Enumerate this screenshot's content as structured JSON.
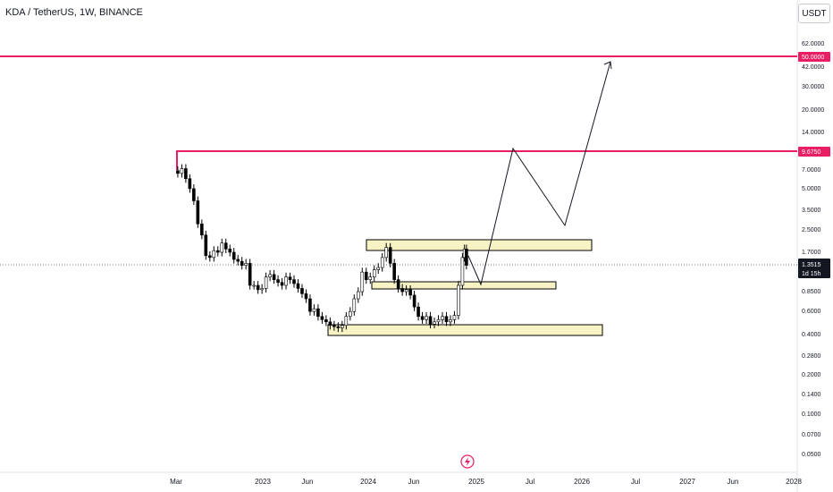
{
  "header": {
    "symbol_title": "KDA / TetherUS, 1W, BINANCE",
    "currency_button": "USDT"
  },
  "price_axis": {
    "ticks": [
      "62.0000",
      "42.0000",
      "30.0000",
      "20.0000",
      "14.0000",
      "7.0000",
      "5.0000",
      "3.5000",
      "2.5000",
      "1.7000",
      "0.8500",
      "0.6000",
      "0.4000",
      "0.2800",
      "0.2000",
      "0.1400",
      "0.1000",
      "0.0700",
      "0.0500"
    ],
    "current_price": "1.3515",
    "countdown": "1d 15h",
    "levels": [
      {
        "label": "50.0000",
        "value": 50.0
      },
      {
        "label": "9.6750",
        "value": 9.675
      }
    ]
  },
  "time_axis": {
    "ticks": [
      "Mar",
      "2023",
      "Jun",
      "2024",
      "Jun",
      "2025",
      "Jul",
      "2026",
      "Jul",
      "2027",
      "Jun",
      "2028"
    ]
  },
  "colors": {
    "level_line": "#e91e63",
    "zone_fill": "#f7f3c4",
    "zone_border": "#000000",
    "up_candle": "#ffffff",
    "down_candle": "#000000",
    "current_price_badge": "#131722"
  },
  "chart_data": {
    "type": "candlestick",
    "scale": "log",
    "x_axis": "weekly, Mar 2022 to 2028",
    "title": "KDA / TetherUS, 1W, BINANCE",
    "series": [
      {
        "values": [
          {
            "date": "2022-03-07",
            "close": 6.8
          },
          {
            "date": "2022-03-21",
            "close": 7.4
          },
          {
            "date": "2022-04-04",
            "close": 6.2
          },
          {
            "date": "2022-04-18",
            "close": 5.2
          },
          {
            "date": "2022-05-02",
            "close": 4.2
          },
          {
            "date": "2022-05-16",
            "close": 2.8
          },
          {
            "date": "2022-05-30",
            "close": 2.3
          },
          {
            "date": "2022-06-13",
            "close": 1.6
          },
          {
            "date": "2022-06-27",
            "close": 1.55
          },
          {
            "date": "2022-07-11",
            "close": 1.75
          },
          {
            "date": "2022-07-25",
            "close": 1.7
          },
          {
            "date": "2022-08-08",
            "close": 2.0
          },
          {
            "date": "2022-08-22",
            "close": 1.8
          },
          {
            "date": "2022-09-05",
            "close": 1.7
          },
          {
            "date": "2022-09-19",
            "close": 1.5
          },
          {
            "date": "2022-10-03",
            "close": 1.45
          },
          {
            "date": "2022-10-17",
            "close": 1.35
          },
          {
            "date": "2022-10-31",
            "close": 1.4
          },
          {
            "date": "2022-11-14",
            "close": 0.95
          },
          {
            "date": "2022-11-28",
            "close": 0.95
          },
          {
            "date": "2022-12-12",
            "close": 0.88
          },
          {
            "date": "2022-12-26",
            "close": 0.9
          },
          {
            "date": "2023-01-09",
            "close": 1.1
          },
          {
            "date": "2023-01-23",
            "close": 1.15
          },
          {
            "date": "2023-02-06",
            "close": 1.05
          },
          {
            "date": "2023-02-20",
            "close": 1.0
          },
          {
            "date": "2023-03-06",
            "close": 0.95
          },
          {
            "date": "2023-03-20",
            "close": 1.1
          },
          {
            "date": "2023-04-03",
            "close": 1.05
          },
          {
            "date": "2023-04-17",
            "close": 0.98
          },
          {
            "date": "2023-05-01",
            "close": 0.9
          },
          {
            "date": "2023-05-15",
            "close": 0.82
          },
          {
            "date": "2023-05-29",
            "close": 0.75
          },
          {
            "date": "2023-06-12",
            "close": 0.6
          },
          {
            "date": "2023-06-26",
            "close": 0.63
          },
          {
            "date": "2023-07-10",
            "close": 0.55
          },
          {
            "date": "2023-07-24",
            "close": 0.52
          },
          {
            "date": "2023-08-07",
            "close": 0.5
          },
          {
            "date": "2023-08-21",
            "close": 0.47
          },
          {
            "date": "2023-09-04",
            "close": 0.46
          },
          {
            "date": "2023-09-18",
            "close": 0.45
          },
          {
            "date": "2023-10-02",
            "close": 0.47
          },
          {
            "date": "2023-10-16",
            "close": 0.55
          },
          {
            "date": "2023-10-30",
            "close": 0.6
          },
          {
            "date": "2023-11-13",
            "close": 0.75
          },
          {
            "date": "2023-11-27",
            "close": 0.85
          },
          {
            "date": "2023-12-11",
            "close": 1.2
          },
          {
            "date": "2023-12-25",
            "close": 1.05
          },
          {
            "date": "2024-01-08",
            "close": 1.1
          },
          {
            "date": "2024-01-22",
            "close": 1.25
          },
          {
            "date": "2024-02-05",
            "close": 1.3
          },
          {
            "date": "2024-02-19",
            "close": 1.55
          },
          {
            "date": "2024-03-04",
            "close": 1.85
          },
          {
            "date": "2024-03-18",
            "close": 1.4
          },
          {
            "date": "2024-04-01",
            "close": 1.05
          },
          {
            "date": "2024-04-15",
            "close": 0.9
          },
          {
            "date": "2024-04-29",
            "close": 0.85
          },
          {
            "date": "2024-05-13",
            "close": 0.88
          },
          {
            "date": "2024-05-27",
            "close": 0.8
          },
          {
            "date": "2024-06-10",
            "close": 0.65
          },
          {
            "date": "2024-06-24",
            "close": 0.55
          },
          {
            "date": "2024-07-08",
            "close": 0.52
          },
          {
            "date": "2024-07-22",
            "close": 0.55
          },
          {
            "date": "2024-08-05",
            "close": 0.48
          },
          {
            "date": "2024-08-19",
            "close": 0.5
          },
          {
            "date": "2024-09-02",
            "close": 0.52
          },
          {
            "date": "2024-09-16",
            "close": 0.55
          },
          {
            "date": "2024-09-30",
            "close": 0.5
          },
          {
            "date": "2024-10-14",
            "close": 0.52
          },
          {
            "date": "2024-10-28",
            "close": 0.56
          },
          {
            "date": "2024-11-11",
            "close": 0.95
          },
          {
            "date": "2024-11-25",
            "close": 1.55
          },
          {
            "date": "2024-12-02",
            "close": 1.8
          },
          {
            "date": "2024-12-09",
            "close": 1.3515
          }
        ]
      }
    ],
    "zones": [
      {
        "from": "2023-12-11",
        "to": "2026-02-15",
        "low": 1.75,
        "high": 2.05
      },
      {
        "from": "2024-02-05",
        "to": "2025-11-10",
        "low": 0.9,
        "high": 0.98
      },
      {
        "from": "2023-08-21",
        "to": "2026-03-15",
        "low": 0.38,
        "high": 0.45
      }
    ],
    "levels": [
      50.0,
      9.675
    ],
    "projection": [
      {
        "date": "2024-12-09",
        "value": 1.4
      },
      {
        "date": "2025-01-10",
        "value": 0.95
      },
      {
        "date": "2025-05-10",
        "value": 9.7
      },
      {
        "date": "2025-11-10",
        "value": 2.8
      },
      {
        "date": "2026-03-10",
        "value": 45.0
      }
    ]
  }
}
